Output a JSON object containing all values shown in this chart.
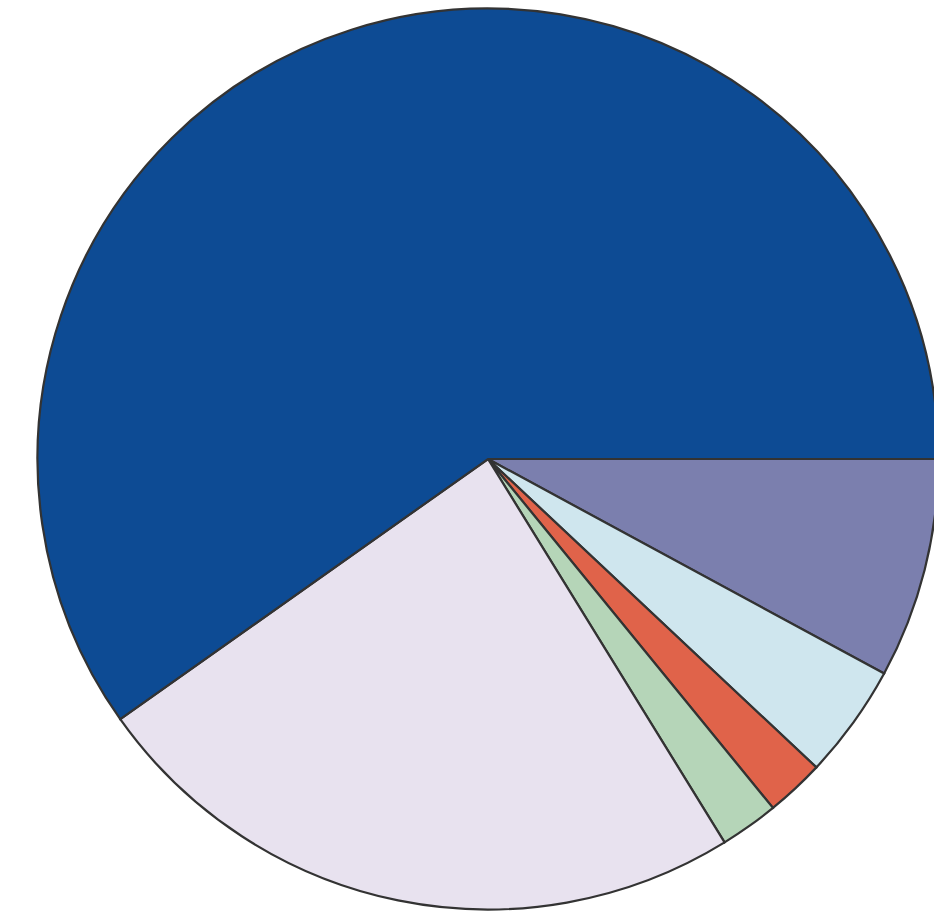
{
  "chart_data": {
    "type": "pie",
    "categories": [
      null,
      null,
      null,
      null,
      null,
      null
    ],
    "values": [
      7.9,
      4.1,
      2.1,
      2.1,
      24.0,
      59.8
    ],
    "colors": [
      "#7b7fae",
      "#cfe6ee",
      "#e0634a",
      "#b5d5b8",
      "#e8e2ef",
      "#0d4b94"
    ]
  }
}
